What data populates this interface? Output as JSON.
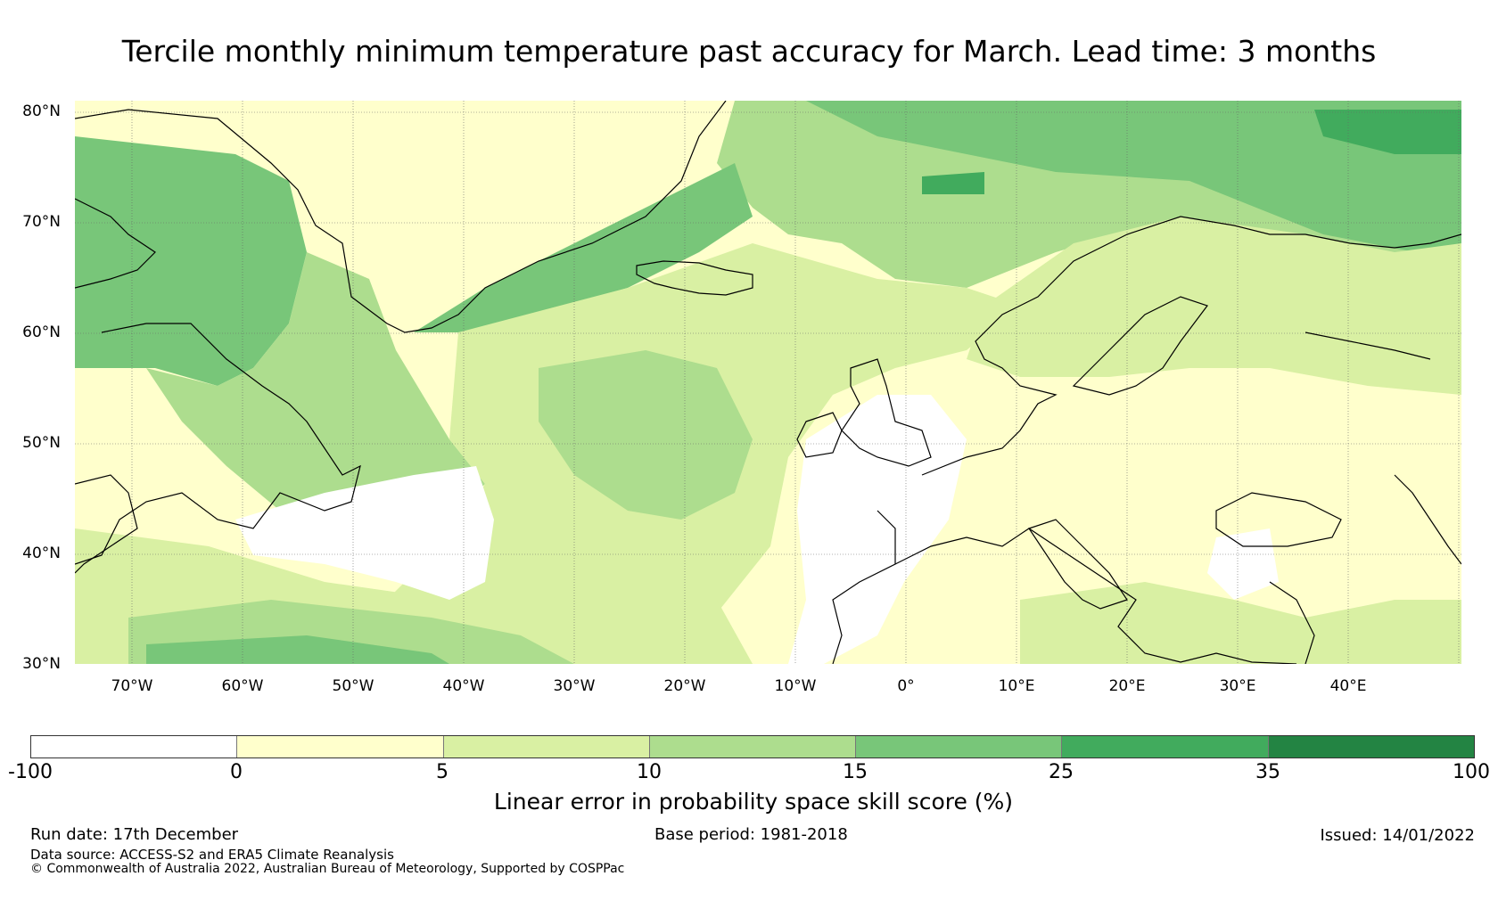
{
  "title": "Tercile monthly minimum temperature past accuracy for March. Lead time: 3 months",
  "map": {
    "lat_labels": [
      "80°N",
      "70°N",
      "60°N",
      "50°N",
      "40°N",
      "30°N"
    ],
    "lon_labels": [
      "70°W",
      "60°W",
      "50°W",
      "40°W",
      "30°W",
      "20°W",
      "10°W",
      "0°",
      "10°E",
      "20°E",
      "30°E",
      "40°E"
    ]
  },
  "colorbar": {
    "ticks": [
      "-100",
      "0",
      "5",
      "10",
      "15",
      "25",
      "35",
      "100"
    ],
    "colors": [
      "#ffffff",
      "#ffffcc",
      "#d9f0a3",
      "#addd8e",
      "#78c679",
      "#41ab5d",
      "#238443"
    ],
    "label": "Linear error in probability space skill score (%)"
  },
  "footer": {
    "run_date": "Run date: 17th December",
    "base_period": "Base period: 1981-2018",
    "issued": "Issued: 14/01/2022",
    "data_source": "Data source: ACCESS-S2 and ERA5 Climate Reanalysis",
    "copyright": "© Commonwealth of Australia 2022, Australian Bureau of Meteorology, Supported by COSPPac"
  }
}
